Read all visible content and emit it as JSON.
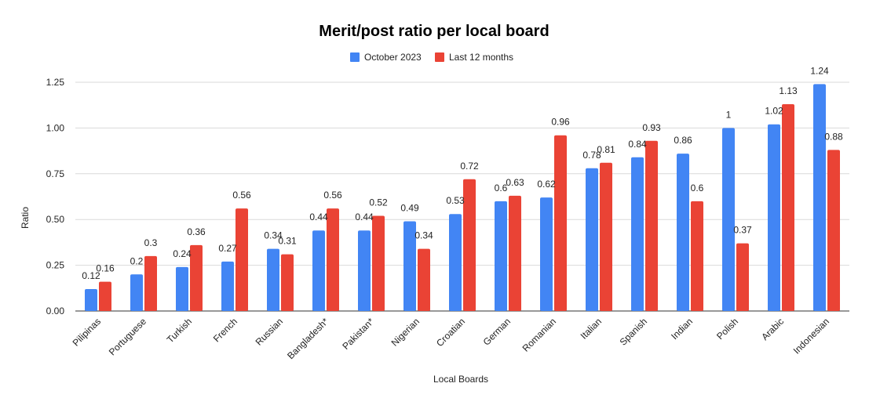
{
  "chart_data": {
    "type": "bar",
    "title": "Merit/post ratio per local board",
    "xlabel": "Local Boards",
    "ylabel": "Ratio",
    "ylim": [
      0,
      1.25
    ],
    "yticks": [
      "0.00",
      "0.25",
      "0.50",
      "0.75",
      "1.00",
      "1.25"
    ],
    "grid": true,
    "legend_position": "top",
    "categories": [
      "Pilipinas",
      "Portuguese",
      "Turkish",
      "French",
      "Russian",
      "Bangladesh*",
      "Pakistan*",
      "Nigerian",
      "Croatian",
      "German",
      "Romanian",
      "Italian",
      "Spanish",
      "Indian",
      "Polish",
      "Arabic",
      "Indonesian"
    ],
    "series": [
      {
        "name": "October 2023",
        "color": "#4285f4",
        "values": [
          0.12,
          0.2,
          0.24,
          0.27,
          0.34,
          0.44,
          0.44,
          0.49,
          0.53,
          0.6,
          0.62,
          0.78,
          0.84,
          0.86,
          1,
          1.02,
          1.24
        ],
        "labels": [
          "0.12",
          "0.2",
          "0.24",
          "0.27",
          "0.34",
          "0.44",
          "0.44",
          "0.49",
          "0.53",
          "0.6",
          "0.62",
          "0.78",
          "0.84",
          "0.86",
          "1",
          "1.02",
          "1.24"
        ]
      },
      {
        "name": "Last 12 months",
        "color": "#ea4335",
        "values": [
          0.16,
          0.3,
          0.36,
          0.56,
          0.31,
          0.56,
          0.52,
          0.34,
          0.72,
          0.63,
          0.96,
          0.81,
          0.93,
          0.6,
          0.37,
          1.13,
          0.88
        ],
        "labels": [
          "0.16",
          "0.3",
          "0.36",
          "0.56",
          "0.31",
          "0.56",
          "0.52",
          "0.34",
          "0.72",
          "0.63",
          "0.96",
          "0.81",
          "0.93",
          "0.6",
          "0.37",
          "1.13",
          "0.88"
        ]
      }
    ]
  }
}
